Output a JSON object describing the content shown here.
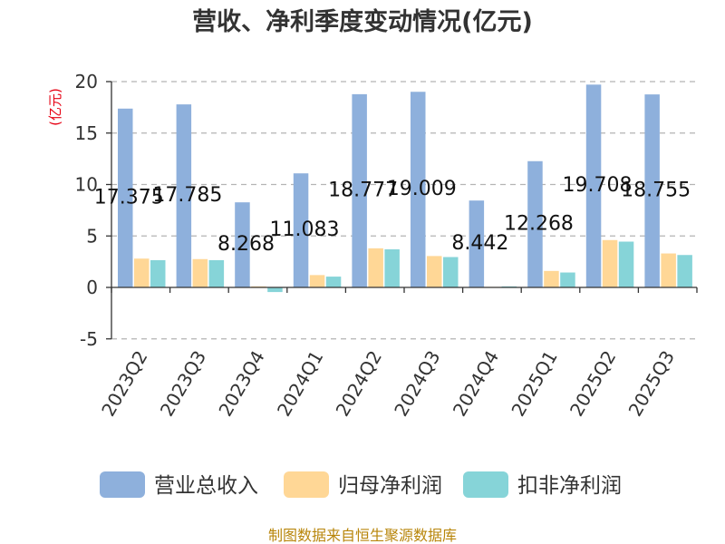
{
  "chart_data": {
    "type": "bar",
    "title": "营收、净利季度变动情况(亿元)",
    "unit_label": "(亿元)",
    "categories": [
      "2023Q2",
      "2023Q3",
      "2023Q4",
      "2024Q1",
      "2024Q2",
      "2024Q3",
      "2024Q4",
      "2025Q1",
      "2025Q2",
      "2025Q3"
    ],
    "series": [
      {
        "name": "营业总收入",
        "color": "#8eb0dc",
        "values": [
          17.375,
          17.785,
          8.268,
          11.083,
          18.777,
          19.009,
          8.442,
          12.268,
          19.708,
          18.755
        ],
        "labels": [
          "17.375",
          "17.785",
          "8.268",
          "11.083",
          "18.777",
          "19.009",
          "8.442",
          "12.268",
          "19.708",
          "18.755"
        ]
      },
      {
        "name": "归母净利润",
        "color": "#ffd796",
        "values": [
          2.8,
          2.75,
          0.1,
          1.2,
          3.8,
          3.05,
          0.05,
          1.6,
          4.6,
          3.3
        ]
      },
      {
        "name": "扣非净利润",
        "color": "#86d4d8",
        "values": [
          2.65,
          2.65,
          -0.45,
          1.05,
          3.7,
          2.95,
          0.1,
          1.45,
          4.45,
          3.15
        ]
      }
    ],
    "ylim": [
      -5,
      20
    ],
    "yticks": [
      -5,
      0,
      5,
      10,
      15,
      20
    ],
    "grid": true,
    "legend_position": "bottom"
  },
  "footer": {
    "source": "制图数据来自恒生聚源数据库"
  }
}
